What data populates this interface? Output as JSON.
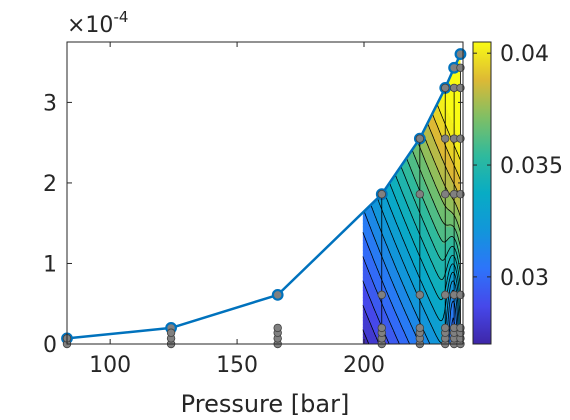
{
  "chart_data": {
    "type": "contour",
    "xlabel": "Pressure [bar]",
    "ylabel": "",
    "xlim": [
      83,
      239
    ],
    "ylim": [
      0,
      0.000375
    ],
    "x_ticks": [
      100,
      150,
      200
    ],
    "x_tick_labels": [
      "100",
      "150",
      "200"
    ],
    "y_ticks": [
      0,
      0.0001,
      0.0002,
      0.0003
    ],
    "y_tick_labels": [
      "0",
      "1",
      "2",
      "3"
    ],
    "y_exponent_label": "×10",
    "y_exponent_power": "-4",
    "grid": false,
    "boundary_series": {
      "color": "#0072bd",
      "points": [
        {
          "x": 83,
          "y": 7e-06
        },
        {
          "x": 124,
          "y": 2e-05
        },
        {
          "x": 166,
          "y": 6.1e-05
        },
        {
          "x": 207,
          "y": 0.000186
        },
        {
          "x": 222,
          "y": 0.000255
        },
        {
          "x": 232,
          "y": 0.000318
        },
        {
          "x": 235.5,
          "y": 0.000343
        },
        {
          "x": 238,
          "y": 0.00036
        }
      ]
    },
    "sample_columns": [
      {
        "x": 83,
        "y": [
          0,
          7e-06
        ]
      },
      {
        "x": 124,
        "y": [
          0,
          7e-06,
          1.4e-05
        ]
      },
      {
        "x": 166,
        "y": [
          0,
          7e-06,
          1.4e-05,
          2e-05
        ]
      },
      {
        "x": 207,
        "y": [
          0,
          7e-06,
          1.4e-05,
          2e-05,
          6.1e-05,
          0.000186
        ]
      },
      {
        "x": 222,
        "y": [
          0,
          7e-06,
          1.4e-05,
          2e-05,
          6.1e-05,
          0.000186,
          0.000255
        ]
      },
      {
        "x": 232,
        "y": [
          0,
          7e-06,
          1.4e-05,
          2e-05,
          6.1e-05,
          0.000186,
          0.000255,
          0.000318
        ]
      },
      {
        "x": 235.5,
        "y": [
          0,
          7e-06,
          1.4e-05,
          2e-05,
          6.1e-05,
          0.000186,
          0.000255,
          0.000318
        ]
      },
      {
        "x": 238,
        "y": [
          0,
          7e-06,
          1.4e-05,
          2e-05,
          6.1e-05,
          0.000186,
          0.000255,
          0.000318,
          0.000343
        ]
      }
    ],
    "contour_region": {
      "x_start": 199.5,
      "x_end": 238,
      "value_min": 0.027,
      "value_max": 0.0405,
      "levels": 20
    },
    "colorbar": {
      "colormap": "parula",
      "clim": [
        0.027,
        0.0405
      ],
      "ticks": [
        0.03,
        0.035,
        0.04
      ],
      "tick_labels": [
        "0.03",
        "0.035",
        "0.04"
      ]
    },
    "colors": {
      "axis": "#262626",
      "line": "#0072bd",
      "marker_face": "#808080",
      "marker_edge": "#404040",
      "contour_line": "#000000"
    }
  }
}
